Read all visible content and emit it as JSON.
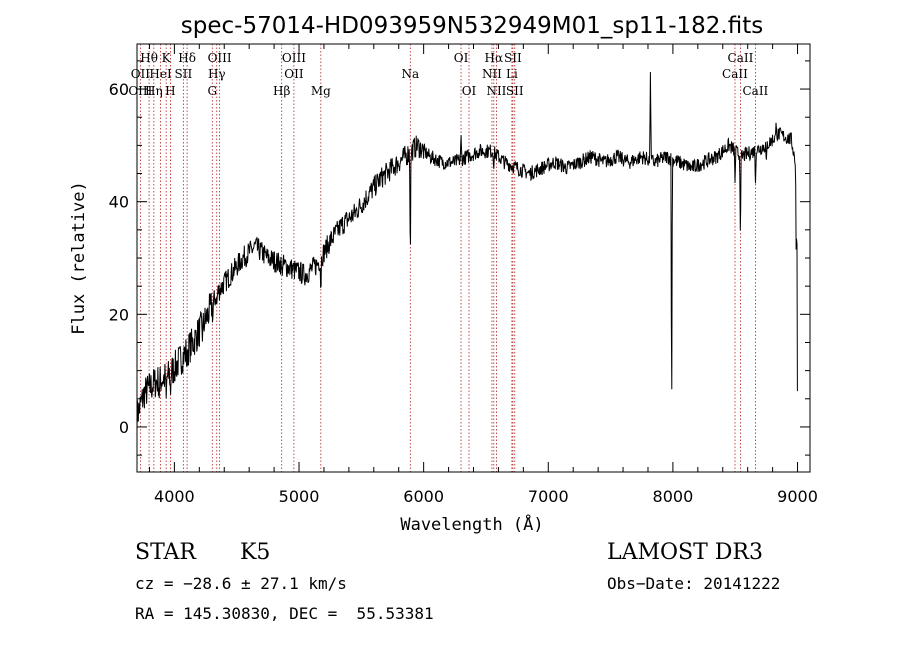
{
  "chart_data": {
    "type": "line",
    "title": "spec-57014-HD093959N532949M01_sp11-182.fits",
    "xlabel": "Wavelength (Å)",
    "ylabel": "Flux (relative)",
    "xlim": [
      3700,
      9100
    ],
    "ylim": [
      -8,
      68
    ],
    "xticks": [
      4000,
      5000,
      6000,
      7000,
      8000,
      9000
    ],
    "xtick_labels": [
      "4000",
      "5000",
      "6000",
      "7000",
      "8000",
      "9000"
    ],
    "yticks": [
      0,
      20,
      40,
      60
    ],
    "ytick_labels": [
      "0",
      "20",
      "40",
      "60"
    ],
    "line_color": "#000000",
    "marker_color": "#b22222",
    "continuum": [
      [
        3700,
        2
      ],
      [
        3760,
        6
      ],
      [
        3850,
        8
      ],
      [
        3950,
        9
      ],
      [
        4050,
        12
      ],
      [
        4150,
        15
      ],
      [
        4250,
        19
      ],
      [
        4350,
        24
      ],
      [
        4450,
        27
      ],
      [
        4550,
        30
      ],
      [
        4650,
        32
      ],
      [
        4750,
        30
      ],
      [
        4850,
        29
      ],
      [
        4950,
        28
      ],
      [
        5050,
        27
      ],
      [
        5150,
        29
      ],
      [
        5250,
        33
      ],
      [
        5350,
        36
      ],
      [
        5450,
        38
      ],
      [
        5550,
        41
      ],
      [
        5650,
        44
      ],
      [
        5750,
        46
      ],
      [
        5850,
        48
      ],
      [
        5950,
        50
      ],
      [
        6050,
        48
      ],
      [
        6150,
        47
      ],
      [
        6250,
        47
      ],
      [
        6350,
        48
      ],
      [
        6450,
        49
      ],
      [
        6550,
        49
      ],
      [
        6650,
        47
      ],
      [
        6750,
        46
      ],
      [
        6850,
        45
      ],
      [
        6950,
        46
      ],
      [
        7050,
        47
      ],
      [
        7150,
        46
      ],
      [
        7250,
        47
      ],
      [
        7350,
        48
      ],
      [
        7450,
        47
      ],
      [
        7550,
        48
      ],
      [
        7650,
        47
      ],
      [
        7750,
        48
      ],
      [
        7850,
        47
      ],
      [
        7950,
        48
      ],
      [
        8050,
        47
      ],
      [
        8150,
        46
      ],
      [
        8250,
        47
      ],
      [
        8350,
        48
      ],
      [
        8450,
        50
      ],
      [
        8550,
        48
      ],
      [
        8650,
        49
      ],
      [
        8750,
        50
      ],
      [
        8850,
        52
      ],
      [
        8950,
        51
      ],
      [
        9000,
        45
      ]
    ],
    "features": [
      [
        3800,
        0
      ],
      [
        3880,
        -3
      ],
      [
        3934,
        -5
      ],
      [
        3968,
        -4
      ],
      [
        4101,
        -3
      ],
      [
        4227,
        -2
      ],
      [
        4308,
        -3
      ],
      [
        4340,
        -2
      ],
      [
        4861,
        -2
      ],
      [
        5175,
        -6
      ],
      [
        5893,
        -20
      ],
      [
        6300,
        4
      ],
      [
        6563,
        -2
      ],
      [
        7820,
        18
      ],
      [
        7990,
        -48
      ],
      [
        8498,
        -6
      ],
      [
        8542,
        -16
      ],
      [
        8662,
        -6
      ],
      [
        8750,
        -4
      ],
      [
        8830,
        3
      ],
      [
        8990,
        -20
      ],
      [
        9000,
        -45
      ]
    ],
    "lines": [
      {
        "label": "Hθ",
        "wl": 3797,
        "row": 0
      },
      {
        "label": "OII",
        "wl": 3727,
        "row": 1
      },
      {
        "label": "OIII",
        "wl": 3727,
        "row": 2
      },
      {
        "label": "K",
        "wl": 3934,
        "row": 0
      },
      {
        "label": "HeI",
        "wl": 3889,
        "row": 1
      },
      {
        "label": "Hη",
        "wl": 3835,
        "row": 2
      },
      {
        "label": "SII",
        "wl": 4072,
        "row": 1
      },
      {
        "label": "H",
        "wl": 3968,
        "row": 2
      },
      {
        "label": "Hδ",
        "wl": 4102,
        "row": 0
      },
      {
        "label": "OIII",
        "wl": 4363,
        "row": 0
      },
      {
        "label": "Hγ",
        "wl": 4340,
        "row": 1
      },
      {
        "label": "G",
        "wl": 4304,
        "row": 2
      },
      {
        "label": "OIII",
        "wl": 4959,
        "row": 0
      },
      {
        "label": "OII",
        "wl": 4959,
        "row": 1
      },
      {
        "label": "Hβ",
        "wl": 4861,
        "row": 2
      },
      {
        "label": "Mg",
        "wl": 5175,
        "row": 2
      },
      {
        "label": "Na",
        "wl": 5893,
        "row": 1
      },
      {
        "label": "OI",
        "wl": 6300,
        "row": 0
      },
      {
        "label": "OI",
        "wl": 6364,
        "row": 2
      },
      {
        "label": "Hα",
        "wl": 6563,
        "row": 0
      },
      {
        "label": "SII",
        "wl": 6716,
        "row": 0
      },
      {
        "label": "NII",
        "wl": 6548,
        "row": 1
      },
      {
        "label": "Li",
        "wl": 6708,
        "row": 1
      },
      {
        "label": "NII",
        "wl": 6584,
        "row": 2
      },
      {
        "label": "SII",
        "wl": 6731,
        "row": 2
      },
      {
        "label": "CaII",
        "wl": 8542,
        "row": 0
      },
      {
        "label": "CaII",
        "wl": 8498,
        "row": 1
      },
      {
        "label": "CaII",
        "wl": 8662,
        "row": 2
      }
    ]
  },
  "info": {
    "object_type": "STAR",
    "subclass": "K5",
    "survey": "LAMOST DR3",
    "cz": "cz = −28.6 ± 27.1 km/s",
    "obs_date": "Obs−Date: 20141222",
    "radec": "RA = 145.30830, DEC =  55.53381"
  }
}
